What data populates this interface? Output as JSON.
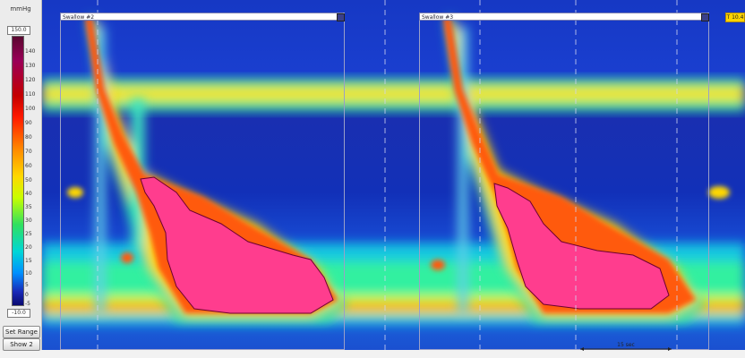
{
  "legend": {
    "unit": "mmHg",
    "max_value": "150.0",
    "min_value": "-10.0",
    "ticks": [
      "140",
      "130",
      "120",
      "110",
      "100",
      "90",
      "80",
      "70",
      "60",
      "50",
      "40",
      "35",
      "30",
      "25",
      "20",
      "15",
      "10",
      "5",
      "0",
      "-5"
    ],
    "set_range_label": "Set Range",
    "show_label": "Show 2"
  },
  "swallows": [
    {
      "label": "Swallow #2"
    },
    {
      "label": "Swallow #3"
    }
  ],
  "marker_label": "T 10.4",
  "duration_label": "15 sec",
  "colors": {
    "background": "#1a3bc8",
    "pink_isobar": "#ff3d8e",
    "window_border": "#9aa0c8"
  }
}
